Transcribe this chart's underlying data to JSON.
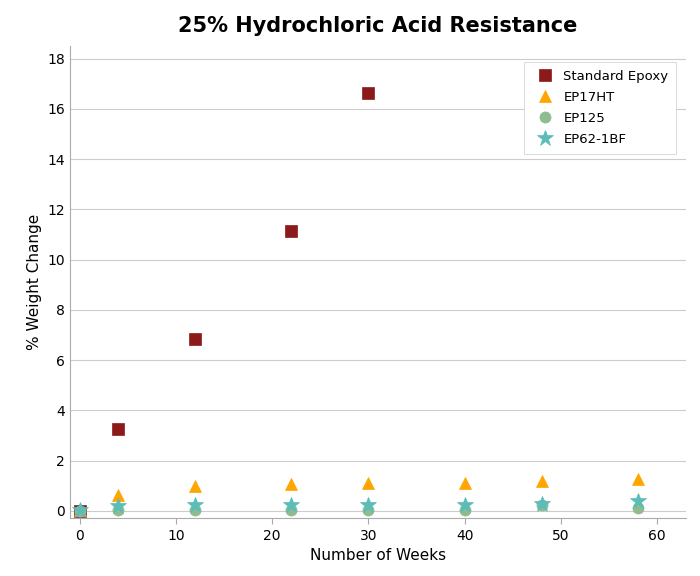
{
  "title": "25% Hydrochloric Acid Resistance",
  "xlabel": "Number of Weeks",
  "ylabel": "% Weight Change",
  "xlim": [
    -1,
    63
  ],
  "ylim": [
    -0.3,
    18.5
  ],
  "yticks": [
    0,
    2,
    4,
    6,
    8,
    10,
    12,
    14,
    16,
    18
  ],
  "xticks": [
    0,
    10,
    20,
    30,
    40,
    50,
    60
  ],
  "series": [
    {
      "label": "Standard Epoxy",
      "x": [
        0,
        4,
        12,
        22,
        30
      ],
      "y": [
        0.0,
        3.25,
        6.85,
        11.15,
        16.65
      ],
      "color": "#8B1A1A",
      "marker": "s",
      "markersize": 9,
      "linestyle": "none"
    },
    {
      "label": "EP17HT",
      "x": [
        0,
        4,
        12,
        22,
        30,
        40,
        48,
        58
      ],
      "y": [
        0.05,
        0.65,
        1.0,
        1.05,
        1.1,
        1.1,
        1.2,
        1.25
      ],
      "color": "#FFA500",
      "marker": "^",
      "markersize": 9,
      "linestyle": "none"
    },
    {
      "label": "EP125",
      "x": [
        0,
        4,
        12,
        22,
        30,
        40,
        48,
        58
      ],
      "y": [
        0.0,
        0.05,
        0.04,
        0.04,
        0.04,
        0.04,
        0.25,
        0.1
      ],
      "color": "#8FBC8F",
      "marker": "o",
      "markersize": 8,
      "linestyle": "none"
    },
    {
      "label": "EP62-1BF",
      "x": [
        0,
        4,
        12,
        22,
        30,
        40,
        48,
        58
      ],
      "y": [
        0.05,
        0.2,
        0.22,
        0.22,
        0.22,
        0.22,
        0.28,
        0.38
      ],
      "color": "#5BBCB8",
      "marker": "*",
      "markersize": 12,
      "linestyle": "none"
    }
  ],
  "background_color": "#ffffff",
  "title_fontsize": 15,
  "label_fontsize": 11,
  "tick_fontsize": 10
}
